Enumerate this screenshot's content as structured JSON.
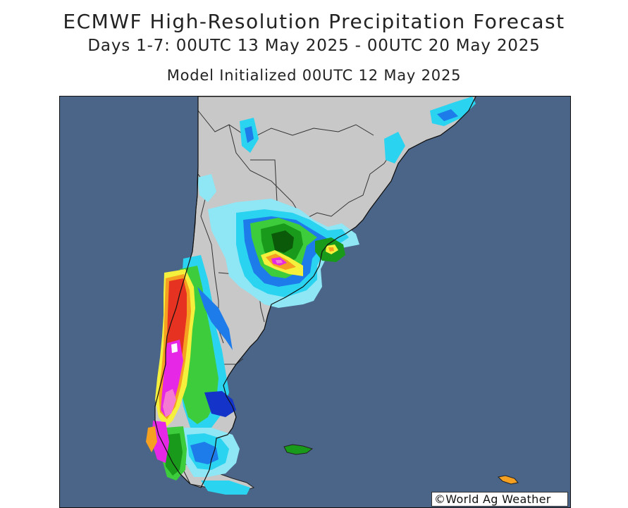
{
  "header": {
    "title": "ECMWF High-Resolution Precipitation Forecast",
    "period": "Days 1-7: 00UTC 13 May 2025 - 00UTC 20 May 2025",
    "init": "Model Initialized 00UTC 12 May 2025"
  },
  "map": {
    "region": "Southern South America",
    "colors": {
      "ocean": "#4a6587",
      "land": "#c8c8c8",
      "light_blue": "#8fe6f5",
      "cyan": "#2ad4f0",
      "blue": "#1e7bea",
      "dark_blue": "#1433c8",
      "light_green": "#3ccc3c",
      "green": "#1a9a1a",
      "dark_green": "#0a5a0a",
      "yellow": "#f5f03c",
      "orange": "#f5a020",
      "red": "#e63220",
      "magenta": "#e628e6",
      "pink": "#f57ad2"
    },
    "credit": "©World Ag Weather"
  }
}
